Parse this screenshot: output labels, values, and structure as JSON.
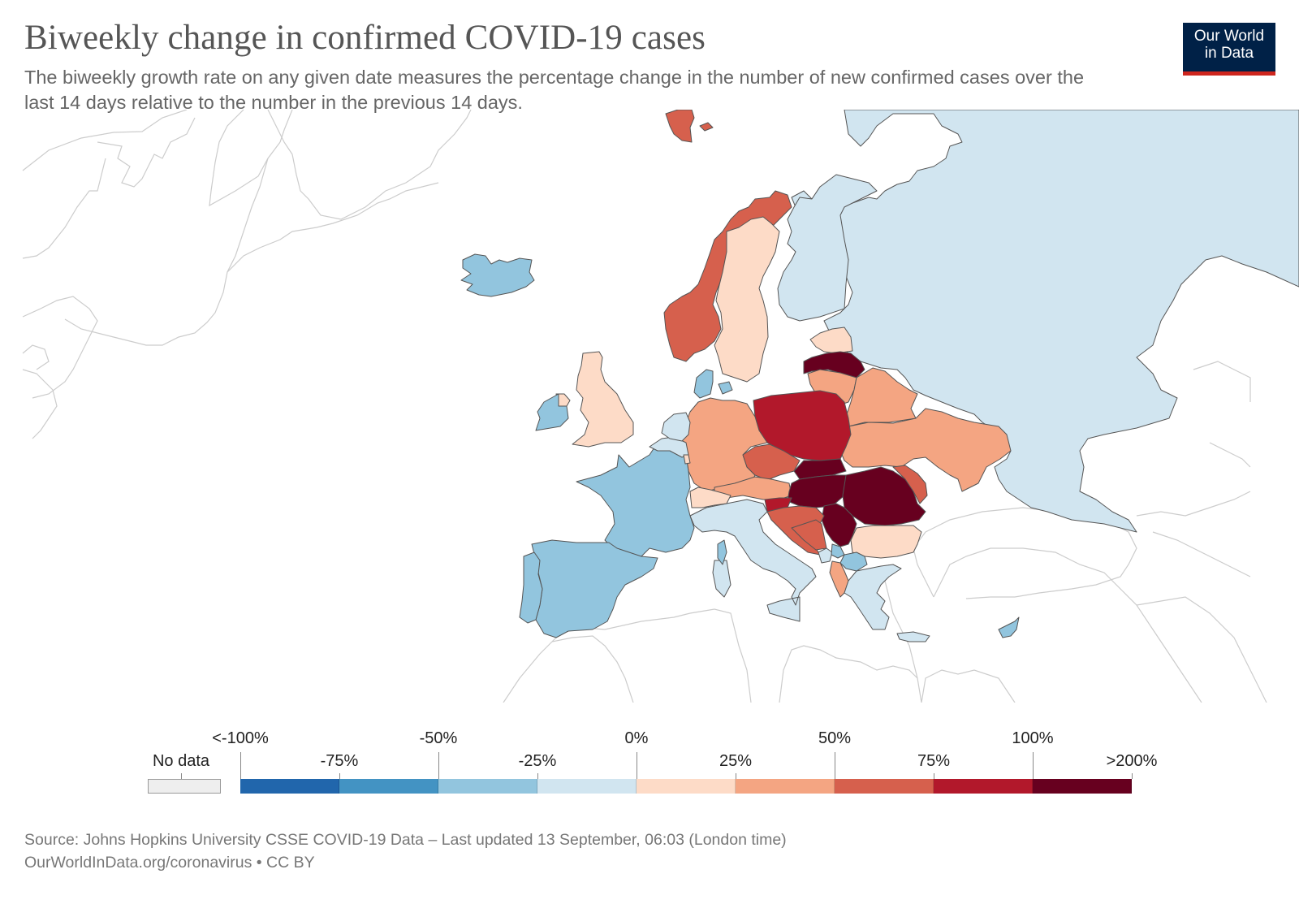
{
  "header": {
    "title": "Biweekly change in confirmed COVID-19 cases",
    "subtitle": "The biweekly growth rate on any given date measures the percentage change in the number of new confirmed cases over the last 14 days relative to the number in the previous 14 days."
  },
  "logo": {
    "line1": "Our World",
    "line2": "in Data",
    "bg_color": "#002147",
    "accent_color": "#ce261e"
  },
  "legend": {
    "no_data_label": "No data",
    "no_data_color": "#eeeeee",
    "top_labels": [
      "<-100%",
      "-50%",
      "0%",
      "50%",
      "100%"
    ],
    "bottom_labels": [
      "-75%",
      "-25%",
      "25%",
      "75%",
      ">200%"
    ],
    "bins": [
      {
        "range": "<-100% to -75%",
        "color": "#2166ac"
      },
      {
        "range": "-75% to -50%",
        "color": "#4393c3"
      },
      {
        "range": "-50% to -25%",
        "color": "#92c5de"
      },
      {
        "range": "-25% to 0%",
        "color": "#d1e5f0"
      },
      {
        "range": "0% to 25%",
        "color": "#fddbc7"
      },
      {
        "range": "25% to 50%",
        "color": "#f4a582"
      },
      {
        "range": "50% to 75%",
        "color": "#d6604d"
      },
      {
        "range": "75% to 100%",
        "color": "#b2182b"
      },
      {
        "range": "100% to >200%",
        "color": "#67001f"
      }
    ]
  },
  "chart_data": {
    "type": "choropleth",
    "title": "Biweekly change in confirmed COVID-19 cases",
    "region": "Europe",
    "unit": "% change (biweekly)",
    "countries": [
      {
        "name": "Russia",
        "bin": "-25% to 0%"
      },
      {
        "name": "Finland",
        "bin": "-25% to 0%"
      },
      {
        "name": "Norway",
        "bin": "50% to 75%"
      },
      {
        "name": "Svalbard",
        "bin": "50% to 75%"
      },
      {
        "name": "Sweden",
        "bin": "0% to 25%"
      },
      {
        "name": "Estonia",
        "bin": "0% to 25%"
      },
      {
        "name": "Latvia",
        "bin": "100% to >200%"
      },
      {
        "name": "Lithuania",
        "bin": "25% to 50%"
      },
      {
        "name": "Belarus",
        "bin": "25% to 50%"
      },
      {
        "name": "Ukraine",
        "bin": "25% to 50%"
      },
      {
        "name": "Poland",
        "bin": "75% to 100%"
      },
      {
        "name": "Germany",
        "bin": "25% to 50%"
      },
      {
        "name": "Czechia",
        "bin": "50% to 75%"
      },
      {
        "name": "Austria",
        "bin": "25% to 50%"
      },
      {
        "name": "Slovakia",
        "bin": "100% to >200%"
      },
      {
        "name": "Hungary",
        "bin": "100% to >200%"
      },
      {
        "name": "Romania",
        "bin": "100% to >200%"
      },
      {
        "name": "Serbia",
        "bin": "100% to >200%"
      },
      {
        "name": "Moldova",
        "bin": "50% to 75%"
      },
      {
        "name": "Slovenia",
        "bin": "75% to 100%"
      },
      {
        "name": "Croatia",
        "bin": "50% to 75%"
      },
      {
        "name": "Bosnia and Herzegovina",
        "bin": "50% to 75%"
      },
      {
        "name": "Bulgaria",
        "bin": "0% to 25%"
      },
      {
        "name": "Montenegro",
        "bin": "-25% to 0%"
      },
      {
        "name": "Kosovo",
        "bin": "-50% to -25%"
      },
      {
        "name": "North Macedonia",
        "bin": "-50% to -25%"
      },
      {
        "name": "Albania",
        "bin": "25% to 50%"
      },
      {
        "name": "Greece",
        "bin": "-25% to 0%"
      },
      {
        "name": "Italy",
        "bin": "-25% to 0%"
      },
      {
        "name": "Switzerland",
        "bin": "0% to 25%"
      },
      {
        "name": "France",
        "bin": "-50% to -25%"
      },
      {
        "name": "Spain",
        "bin": "-50% to -25%"
      },
      {
        "name": "Portugal",
        "bin": "-50% to -25%"
      },
      {
        "name": "Belgium",
        "bin": "-25% to 0%"
      },
      {
        "name": "Netherlands",
        "bin": "-25% to 0%"
      },
      {
        "name": "Luxembourg",
        "bin": "0% to 25%"
      },
      {
        "name": "Denmark",
        "bin": "-50% to -25%"
      },
      {
        "name": "United Kingdom",
        "bin": "0% to 25%"
      },
      {
        "name": "Ireland",
        "bin": "-50% to -25%"
      },
      {
        "name": "Iceland",
        "bin": "-50% to -25%"
      },
      {
        "name": "Cyprus",
        "bin": "-50% to -25%"
      },
      {
        "name": "Corsica (France)",
        "bin": "-50% to -25%"
      }
    ]
  },
  "footer": {
    "source": "Source: Johns Hopkins University CSSE COVID-19 Data – Last updated 13 September, 06:03 (London time)",
    "url_license": "OurWorldInData.org/coronavirus • CC BY"
  }
}
